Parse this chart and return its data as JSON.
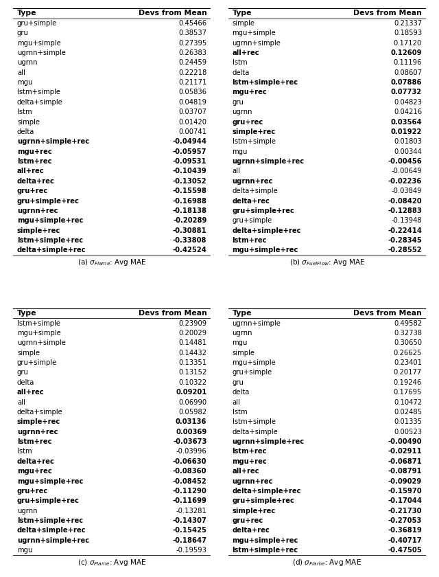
{
  "tables": [
    {
      "caption": "(a) $\\sigma_{Flame}$: Avg MAE",
      "rows": [
        [
          "gru+simple",
          "0.45466",
          false
        ],
        [
          "gru",
          "0.38537",
          false
        ],
        [
          "mgu+simple",
          "0.27395",
          false
        ],
        [
          "ugrnn+simple",
          "0.26383",
          false
        ],
        [
          "ugrnn",
          "0.24459",
          false
        ],
        [
          "all",
          "0.22218",
          false
        ],
        [
          "mgu",
          "0.21171",
          false
        ],
        [
          "lstm+simple",
          "0.05836",
          false
        ],
        [
          "delta+simple",
          "0.04819",
          false
        ],
        [
          "lstm",
          "0.03707",
          false
        ],
        [
          "simple",
          "0.01420",
          false
        ],
        [
          "delta",
          "0.00741",
          false
        ],
        [
          "ugrnn+simple+rec",
          "-0.04944",
          true
        ],
        [
          "mgu+rec",
          "-0.05957",
          true
        ],
        [
          "lstm+rec",
          "-0.09531",
          true
        ],
        [
          "all+rec",
          "-0.10439",
          true
        ],
        [
          "delta+rec",
          "-0.13052",
          true
        ],
        [
          "gru+rec",
          "-0.15598",
          true
        ],
        [
          "gru+simple+rec",
          "-0.16988",
          true
        ],
        [
          "ugrnn+rec",
          "-0.18138",
          true
        ],
        [
          "mgu+simple+rec",
          "-0.20289",
          true
        ],
        [
          "simple+rec",
          "-0.30881",
          true
        ],
        [
          "lstm+simple+rec",
          "-0.33808",
          true
        ],
        [
          "delta+simple+rec",
          "-0.42524",
          true
        ]
      ]
    },
    {
      "caption": "(b) $\\sigma_{FuelFlow}$: Avg MAE",
      "rows": [
        [
          "simple",
          "0.21337",
          false
        ],
        [
          "mgu+simple",
          "0.18593",
          false
        ],
        [
          "ugrnn+simple",
          "0.17120",
          false
        ],
        [
          "all+rec",
          "0.12609",
          true
        ],
        [
          "lstm",
          "0.11196",
          false
        ],
        [
          "delta",
          "0.08607",
          false
        ],
        [
          "lstm+simple+rec",
          "0.07886",
          true
        ],
        [
          "mgu+rec",
          "0.07732",
          true
        ],
        [
          "gru",
          "0.04823",
          false
        ],
        [
          "ugrnn",
          "0.04216",
          false
        ],
        [
          "gru+rec",
          "0.03564",
          true
        ],
        [
          "simple+rec",
          "0.01922",
          true
        ],
        [
          "lstm+simple",
          "0.01803",
          false
        ],
        [
          "mgu",
          "0.00344",
          false
        ],
        [
          "ugrnn+simple+rec",
          "-0.00456",
          true
        ],
        [
          "all",
          "-0.00649",
          false
        ],
        [
          "ugrnn+rec",
          "-0.02236",
          true
        ],
        [
          "delta+simple",
          "-0.03849",
          false
        ],
        [
          "delta+rec",
          "-0.08420",
          true
        ],
        [
          "gru+simple+rec",
          "-0.12883",
          true
        ],
        [
          "gru+simple",
          "-0.13948",
          false
        ],
        [
          "delta+simple+rec",
          "-0.22414",
          true
        ],
        [
          "lstm+rec",
          "-0.28345",
          true
        ],
        [
          "mgu+simple+rec",
          "-0.28552",
          true
        ]
      ]
    },
    {
      "caption": "(c) $\\sigma_{Flame}$: Avg MAE",
      "rows": [
        [
          "lstm+simple",
          "0.23909",
          false
        ],
        [
          "mgu+simple",
          "0.20029",
          false
        ],
        [
          "ugrnn+simple",
          "0.14481",
          false
        ],
        [
          "simple",
          "0.14432",
          false
        ],
        [
          "gru+simple",
          "0.13351",
          false
        ],
        [
          "gru",
          "0.13152",
          false
        ],
        [
          "delta",
          "0.10322",
          false
        ],
        [
          "all+rec",
          "0.09201",
          true
        ],
        [
          "all",
          "0.06990",
          false
        ],
        [
          "delta+simple",
          "0.05982",
          false
        ],
        [
          "simple+rec",
          "0.03136",
          true
        ],
        [
          "ugrnn+rec",
          "0.00369",
          true
        ],
        [
          "lstm+rec",
          "-0.03673",
          true
        ],
        [
          "lstm",
          "-0.03996",
          false
        ],
        [
          "delta+rec",
          "-0.06630",
          true
        ],
        [
          "mgu+rec",
          "-0.08360",
          true
        ],
        [
          "mgu+simple+rec",
          "-0.08452",
          true
        ],
        [
          "gru+rec",
          "-0.11290",
          true
        ],
        [
          "gru+simple+rec",
          "-0.11699",
          true
        ],
        [
          "ugrnn",
          "-0.13281",
          false
        ],
        [
          "lstm+simple+rec",
          "-0.14307",
          true
        ],
        [
          "delta+simple+rec",
          "-0.15425",
          true
        ],
        [
          "ugrnn+simple+rec",
          "-0.18647",
          true
        ],
        [
          "mgu",
          "-0.19593",
          false
        ]
      ]
    },
    {
      "caption": "(d) $\\sigma_{Flame}$: Avg MAE",
      "rows": [
        [
          "ugrnn+simple",
          "0.49582",
          false
        ],
        [
          "ugrnn",
          "0.32738",
          false
        ],
        [
          "mgu",
          "0.30650",
          false
        ],
        [
          "simple",
          "0.26625",
          false
        ],
        [
          "mgu+simple",
          "0.23401",
          false
        ],
        [
          "gru+simple",
          "0.20177",
          false
        ],
        [
          "gru",
          "0.19246",
          false
        ],
        [
          "delta",
          "0.17695",
          false
        ],
        [
          "all",
          "0.10472",
          false
        ],
        [
          "lstm",
          "0.02485",
          false
        ],
        [
          "lstm+simple",
          "0.01335",
          false
        ],
        [
          "delta+simple",
          "0.00523",
          false
        ],
        [
          "ugrnn+simple+rec",
          "-0.00490",
          true
        ],
        [
          "lstm+rec",
          "-0.02911",
          true
        ],
        [
          "mgu+rec",
          "-0.06871",
          true
        ],
        [
          "all+rec",
          "-0.08791",
          true
        ],
        [
          "ugrnn+rec",
          "-0.09029",
          true
        ],
        [
          "delta+simple+rec",
          "-0.15970",
          true
        ],
        [
          "gru+simple+rec",
          "-0.17044",
          true
        ],
        [
          "simple+rec",
          "-0.21730",
          true
        ],
        [
          "gru+rec",
          "-0.27053",
          true
        ],
        [
          "delta+rec",
          "-0.36819",
          true
        ],
        [
          "mgu+simple+rec",
          "-0.40717",
          true
        ],
        [
          "lstm+simple+rec",
          "-0.47505",
          true
        ]
      ]
    }
  ],
  "col_header": [
    "Type",
    "Devs from Mean"
  ],
  "fontsize": 7.2,
  "header_fontsize": 7.8
}
